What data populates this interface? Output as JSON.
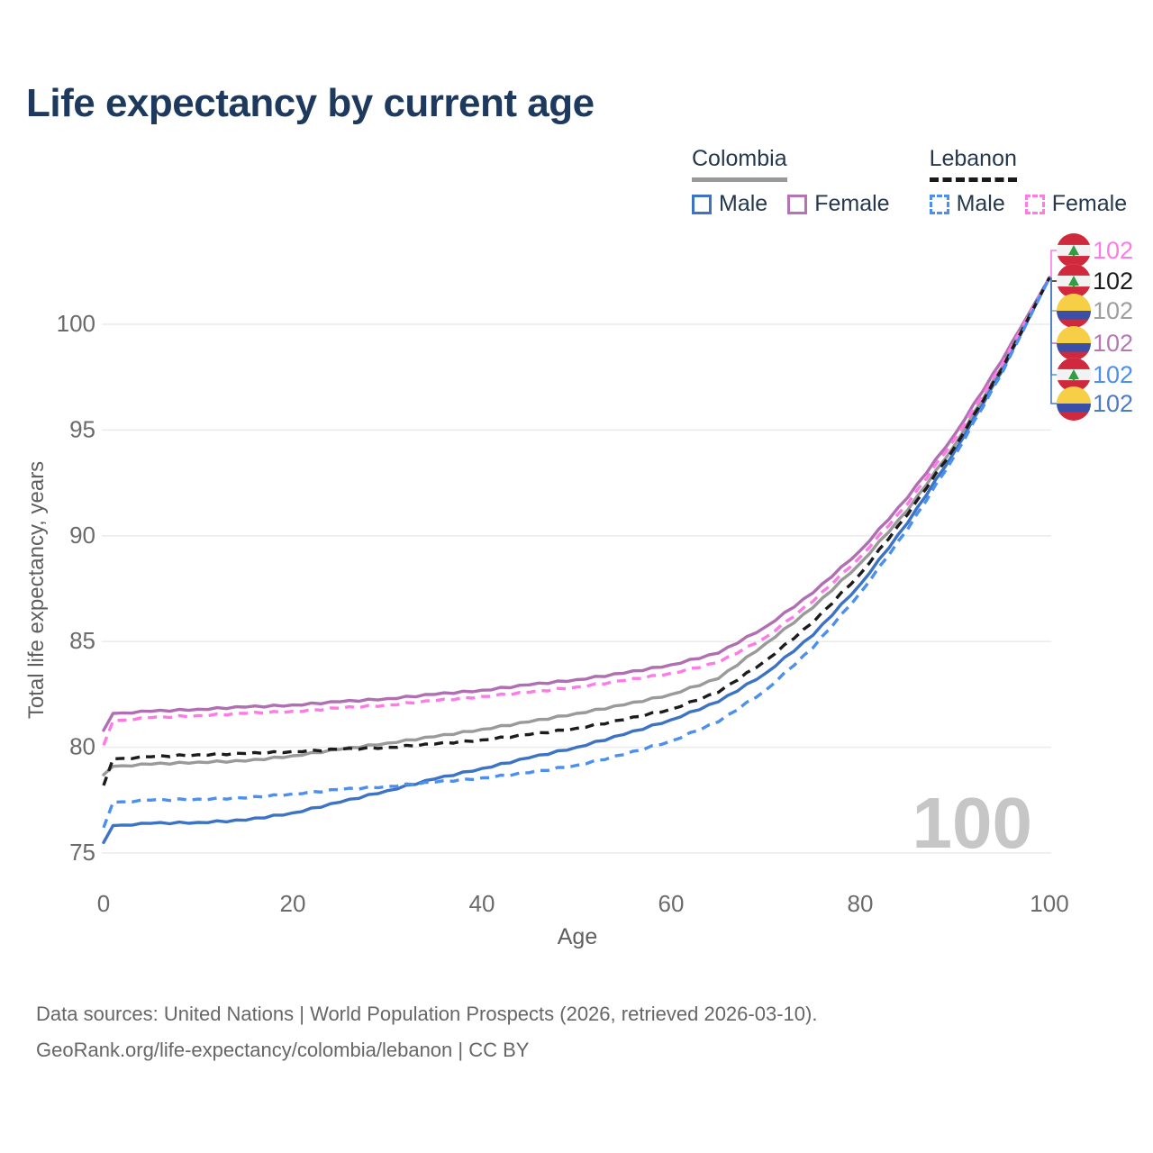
{
  "title": "Life expectancy by current age",
  "watermark": "100",
  "legend": {
    "groups": [
      {
        "country": "Colombia",
        "line_style": "solid",
        "underline_color": "#999999",
        "items": [
          {
            "label": "Male",
            "color": "#3d73c4",
            "dashed": false
          },
          {
            "label": "Female",
            "color": "#b573b5",
            "dashed": false
          }
        ]
      },
      {
        "country": "Lebanon",
        "line_style": "dashed",
        "underline_color": "#1a1a1a",
        "items": [
          {
            "label": "Male",
            "color": "#4b8ff0",
            "dashed": true
          },
          {
            "label": "Female",
            "color": "#ff7ae6",
            "dashed": true
          }
        ]
      }
    ]
  },
  "footer": {
    "line1": "Data sources: United Nations | World Population Prospects (2026, retrieved 2026-03-10).",
    "line2": "GeoRank.org/life-expectancy/colombia/lebanon | CC BY"
  },
  "chart_data": {
    "type": "line",
    "title": "Life expectancy by current age",
    "xlabel": "Age",
    "ylabel": "Total life expectancy, years",
    "xlim": [
      0,
      100
    ],
    "ylim": [
      75,
      102.5
    ],
    "xticks": [
      0,
      20,
      40,
      60,
      80,
      100
    ],
    "yticks": [
      75,
      80,
      85,
      90,
      95,
      100
    ],
    "grid": "horizontal",
    "legend_position": "top-right",
    "ages": [
      0,
      1,
      5,
      10,
      15,
      20,
      25,
      30,
      35,
      40,
      45,
      50,
      55,
      60,
      65,
      70,
      75,
      80,
      85,
      90,
      95,
      100
    ],
    "series": [
      {
        "name": "Colombia Female",
        "country": "Colombia",
        "sex": "Female",
        "style": "solid",
        "color": "#b06fb2",
        "values": [
          80.8,
          81.6,
          81.7,
          81.8,
          81.9,
          82.0,
          82.15,
          82.3,
          82.5,
          82.7,
          82.95,
          83.2,
          83.5,
          83.9,
          84.45,
          85.7,
          87.3,
          89.3,
          91.8,
          94.8,
          98.3,
          102.2
        ]
      },
      {
        "name": "Colombia Total",
        "country": "Colombia",
        "sex": "Total",
        "style": "solid",
        "color": "#9a9a9a",
        "values": [
          78.7,
          79.1,
          79.2,
          79.3,
          79.35,
          79.6,
          79.9,
          80.2,
          80.5,
          80.85,
          81.2,
          81.6,
          82.0,
          82.5,
          83.25,
          84.9,
          86.6,
          88.7,
          91.2,
          94.3,
          98.0,
          102.2
        ]
      },
      {
        "name": "Colombia Male",
        "country": "Colombia",
        "sex": "Male",
        "style": "solid",
        "color": "#3d73c4",
        "values": [
          75.5,
          76.3,
          76.4,
          76.45,
          76.55,
          76.9,
          77.4,
          77.95,
          78.5,
          79.0,
          79.5,
          80.0,
          80.6,
          81.3,
          82.15,
          83.5,
          85.3,
          87.7,
          90.6,
          94.0,
          97.8,
          102.2
        ]
      },
      {
        "name": "Lebanon Female",
        "country": "Lebanon",
        "sex": "Female",
        "style": "dashed",
        "color": "#ff7ae6",
        "values": [
          80.1,
          81.25,
          81.4,
          81.5,
          81.6,
          81.7,
          81.85,
          82.0,
          82.2,
          82.4,
          82.6,
          82.85,
          83.15,
          83.5,
          84.0,
          85.2,
          86.9,
          89.0,
          91.5,
          94.6,
          98.1,
          102.2
        ]
      },
      {
        "name": "Lebanon Total",
        "country": "Lebanon",
        "sex": "Total",
        "style": "dashed",
        "color": "#1c1c1c",
        "values": [
          78.2,
          79.45,
          79.55,
          79.65,
          79.7,
          79.8,
          79.9,
          80.0,
          80.15,
          80.35,
          80.6,
          80.9,
          81.3,
          81.8,
          82.6,
          84.1,
          85.9,
          88.2,
          91.0,
          94.2,
          97.9,
          102.2
        ]
      },
      {
        "name": "Lebanon Male",
        "country": "Lebanon",
        "sex": "Male",
        "style": "dashed",
        "color": "#4b8ff0",
        "values": [
          76.2,
          77.4,
          77.5,
          77.55,
          77.6,
          77.8,
          78.0,
          78.15,
          78.35,
          78.55,
          78.8,
          79.15,
          79.65,
          80.3,
          81.2,
          82.7,
          84.7,
          87.3,
          90.3,
          93.8,
          97.7,
          102.2
        ]
      }
    ],
    "end_labels": [
      {
        "value": "102",
        "flag": "lebanon",
        "series": "Lebanon Female",
        "color": "#ff7ae6"
      },
      {
        "value": "102",
        "flag": "lebanon",
        "series": "Lebanon Total",
        "color": "#1c1c1c"
      },
      {
        "value": "102",
        "flag": "colombia",
        "series": "Colombia Total",
        "color": "#9e9e9e"
      },
      {
        "value": "102",
        "flag": "colombia",
        "series": "Colombia Female",
        "color": "#b577b5"
      },
      {
        "value": "102",
        "flag": "lebanon",
        "series": "Lebanon Male",
        "color": "#4b8ff0"
      },
      {
        "value": "102",
        "flag": "colombia",
        "series": "Colombia Male",
        "color": "#4a7bc4"
      }
    ]
  }
}
